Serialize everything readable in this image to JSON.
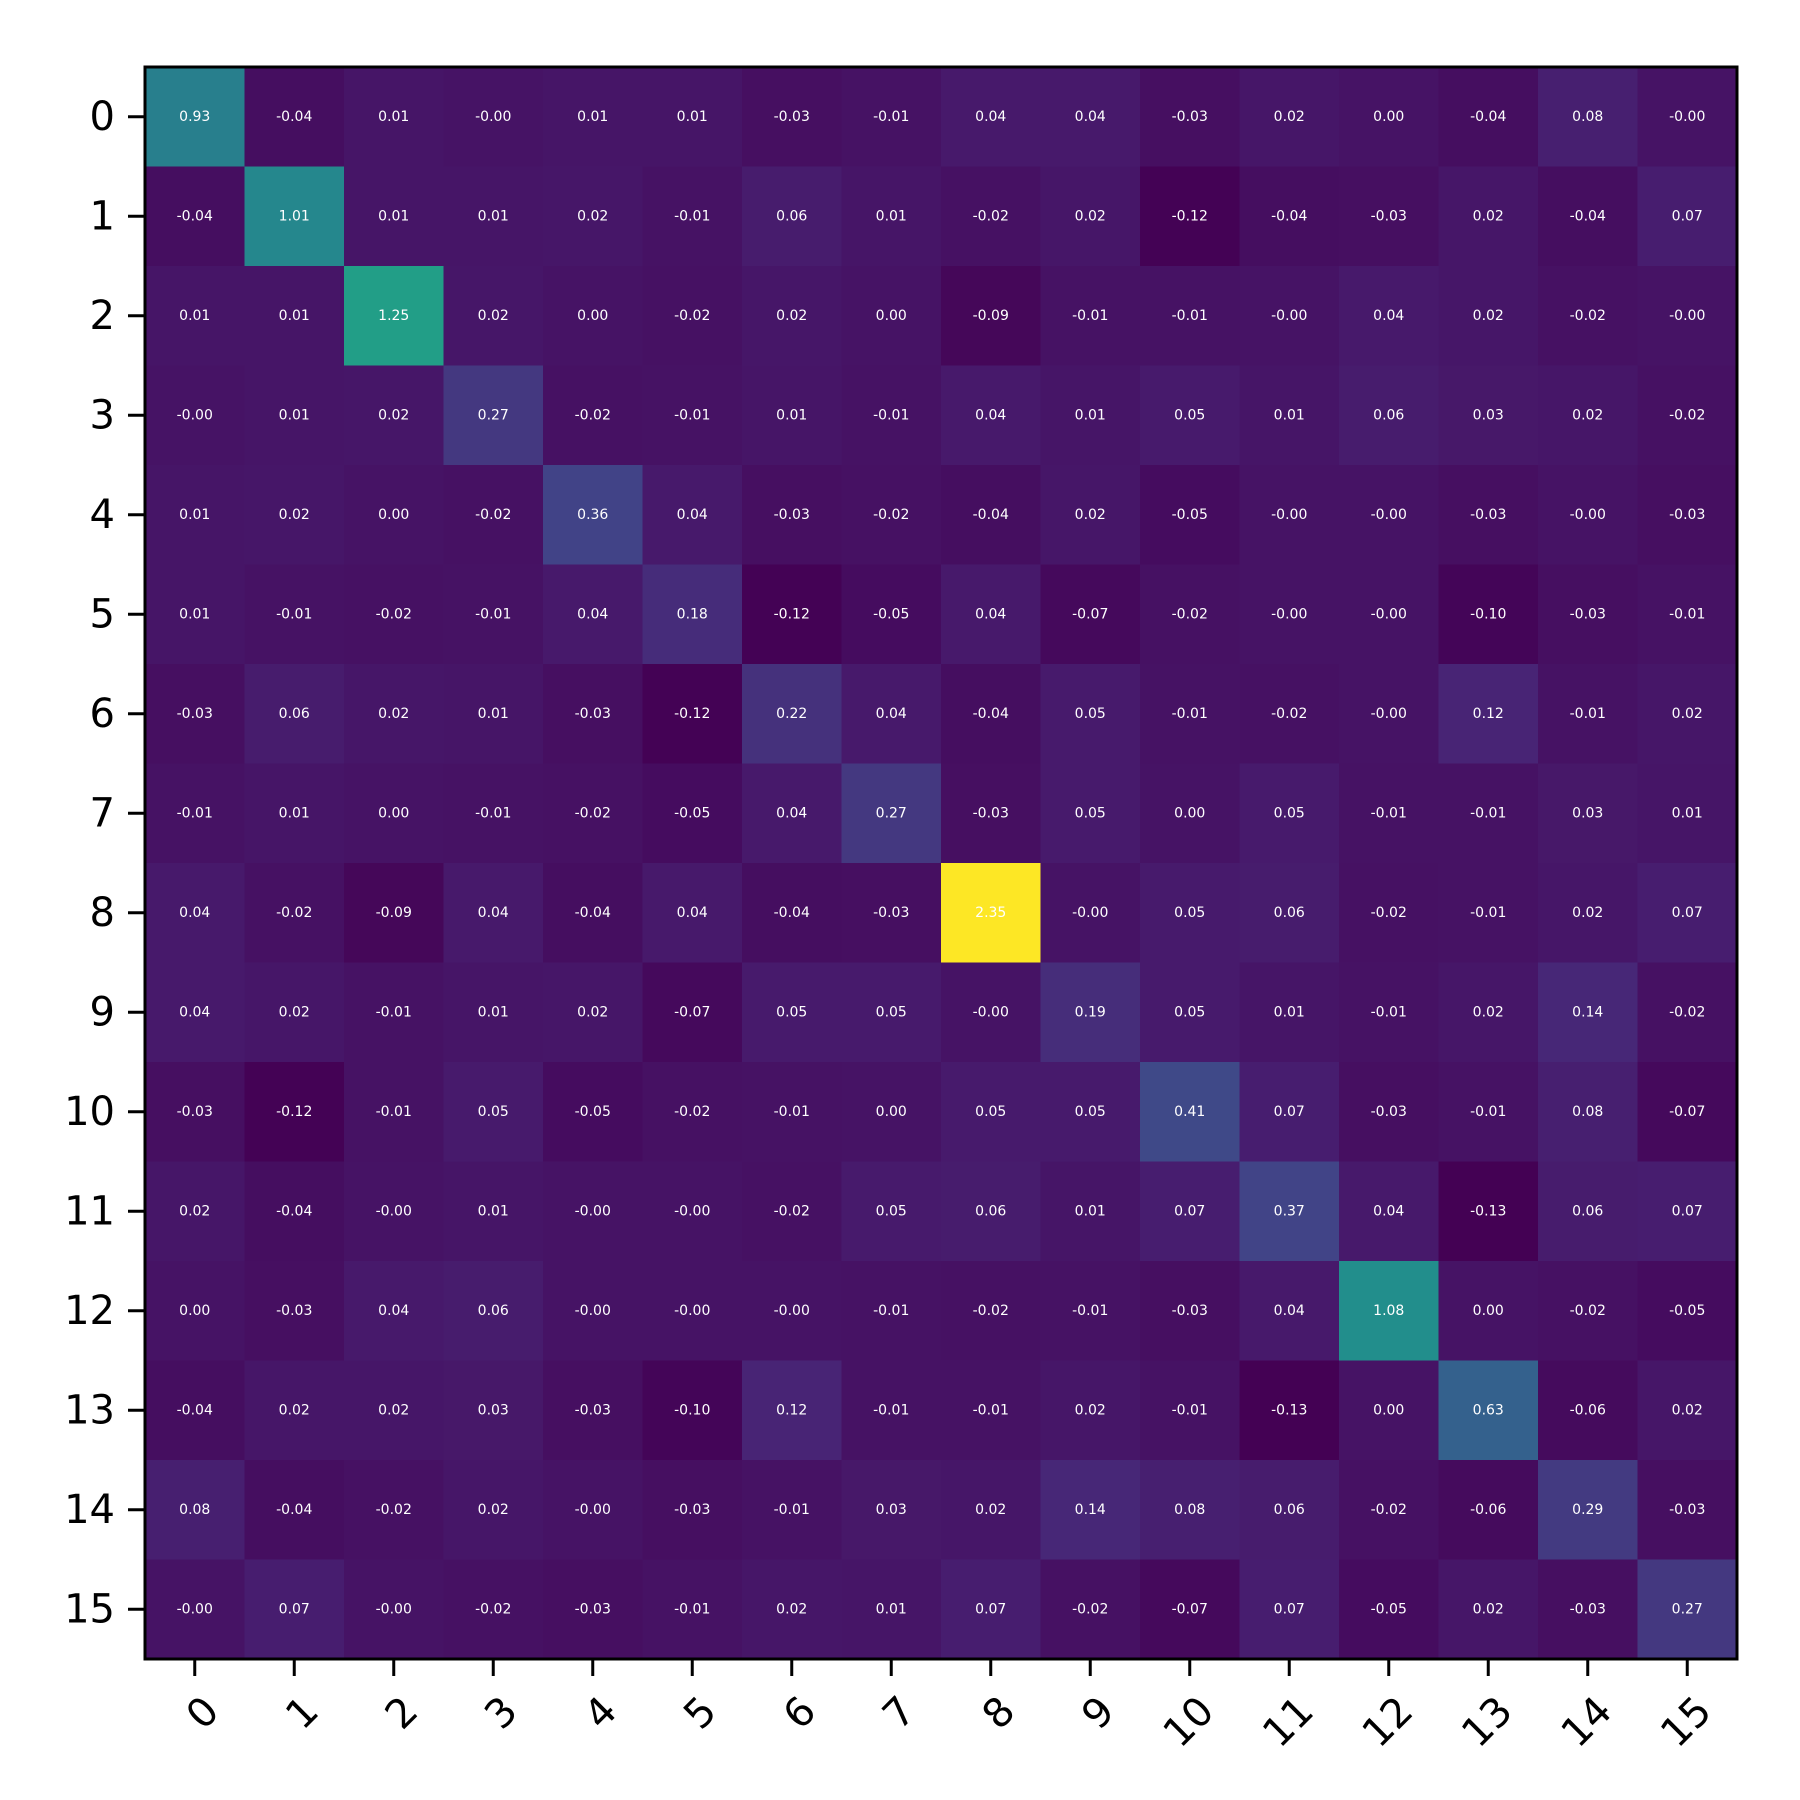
{
  "chart_data": {
    "type": "heatmap",
    "title": "",
    "xlabel": "",
    "ylabel": "",
    "x_tick_labels": [
      "0",
      "1",
      "2",
      "3",
      "4",
      "5",
      "6",
      "7",
      "8",
      "9",
      "10",
      "11",
      "12",
      "13",
      "14",
      "15"
    ],
    "y_tick_labels": [
      "0",
      "1",
      "2",
      "3",
      "4",
      "5",
      "6",
      "7",
      "8",
      "9",
      "10",
      "11",
      "12",
      "13",
      "14",
      "15"
    ],
    "colormap": "viridis",
    "color_range": [
      -0.13,
      2.35
    ],
    "cell_label_color": "#ffffff",
    "values": [
      [
        0.93,
        -0.04,
        0.01,
        -0.0,
        0.01,
        0.01,
        -0.03,
        -0.01,
        0.04,
        0.04,
        -0.03,
        0.02,
        0.0,
        -0.04,
        0.08,
        -0.0
      ],
      [
        -0.04,
        1.01,
        0.01,
        0.01,
        0.02,
        -0.01,
        0.06,
        0.01,
        -0.02,
        0.02,
        -0.12,
        -0.04,
        -0.03,
        0.02,
        -0.04,
        0.07
      ],
      [
        0.01,
        0.01,
        1.25,
        0.02,
        0.0,
        -0.02,
        0.02,
        0.0,
        -0.09,
        -0.01,
        -0.01,
        -0.0,
        0.04,
        0.02,
        -0.02,
        -0.0
      ],
      [
        -0.0,
        0.01,
        0.02,
        0.27,
        -0.02,
        -0.01,
        0.01,
        -0.01,
        0.04,
        0.01,
        0.05,
        0.01,
        0.06,
        0.03,
        0.02,
        -0.02
      ],
      [
        0.01,
        0.02,
        0.0,
        -0.02,
        0.36,
        0.04,
        -0.03,
        -0.02,
        -0.04,
        0.02,
        -0.05,
        -0.0,
        -0.0,
        -0.03,
        -0.0,
        -0.03
      ],
      [
        0.01,
        -0.01,
        -0.02,
        -0.01,
        0.04,
        0.18,
        -0.12,
        -0.05,
        0.04,
        -0.07,
        -0.02,
        -0.0,
        -0.0,
        -0.1,
        -0.03,
        -0.01
      ],
      [
        -0.03,
        0.06,
        0.02,
        0.01,
        -0.03,
        -0.12,
        0.22,
        0.04,
        -0.04,
        0.05,
        -0.01,
        -0.02,
        -0.0,
        0.12,
        -0.01,
        0.02
      ],
      [
        -0.01,
        0.01,
        0.0,
        -0.01,
        -0.02,
        -0.05,
        0.04,
        0.27,
        -0.03,
        0.05,
        0.0,
        0.05,
        -0.01,
        -0.01,
        0.03,
        0.01
      ],
      [
        0.04,
        -0.02,
        -0.09,
        0.04,
        -0.04,
        0.04,
        -0.04,
        -0.03,
        2.35,
        -0.0,
        0.05,
        0.06,
        -0.02,
        -0.01,
        0.02,
        0.07
      ],
      [
        0.04,
        0.02,
        -0.01,
        0.01,
        0.02,
        -0.07,
        0.05,
        0.05,
        -0.0,
        0.19,
        0.05,
        0.01,
        -0.01,
        0.02,
        0.14,
        -0.02
      ],
      [
        -0.03,
        -0.12,
        -0.01,
        0.05,
        -0.05,
        -0.02,
        -0.01,
        0.0,
        0.05,
        0.05,
        0.41,
        0.07,
        -0.03,
        -0.01,
        0.08,
        -0.07
      ],
      [
        0.02,
        -0.04,
        -0.0,
        0.01,
        -0.0,
        -0.0,
        -0.02,
        0.05,
        0.06,
        0.01,
        0.07,
        0.37,
        0.04,
        -0.13,
        0.06,
        0.07
      ],
      [
        0.0,
        -0.03,
        0.04,
        0.06,
        -0.0,
        -0.0,
        -0.0,
        -0.01,
        -0.02,
        -0.01,
        -0.03,
        0.04,
        1.08,
        0.0,
        -0.02,
        -0.05
      ],
      [
        -0.04,
        0.02,
        0.02,
        0.03,
        -0.03,
        -0.1,
        0.12,
        -0.01,
        -0.01,
        0.02,
        -0.01,
        -0.13,
        0.0,
        0.63,
        -0.06,
        0.02
      ],
      [
        0.08,
        -0.04,
        -0.02,
        0.02,
        -0.0,
        -0.03,
        -0.01,
        0.03,
        0.02,
        0.14,
        0.08,
        0.06,
        -0.02,
        -0.06,
        0.29,
        -0.03
      ],
      [
        -0.0,
        0.07,
        -0.0,
        -0.02,
        -0.03,
        -0.01,
        0.02,
        0.01,
        0.07,
        -0.02,
        -0.07,
        0.07,
        -0.05,
        0.02,
        -0.03,
        0.27
      ]
    ]
  }
}
